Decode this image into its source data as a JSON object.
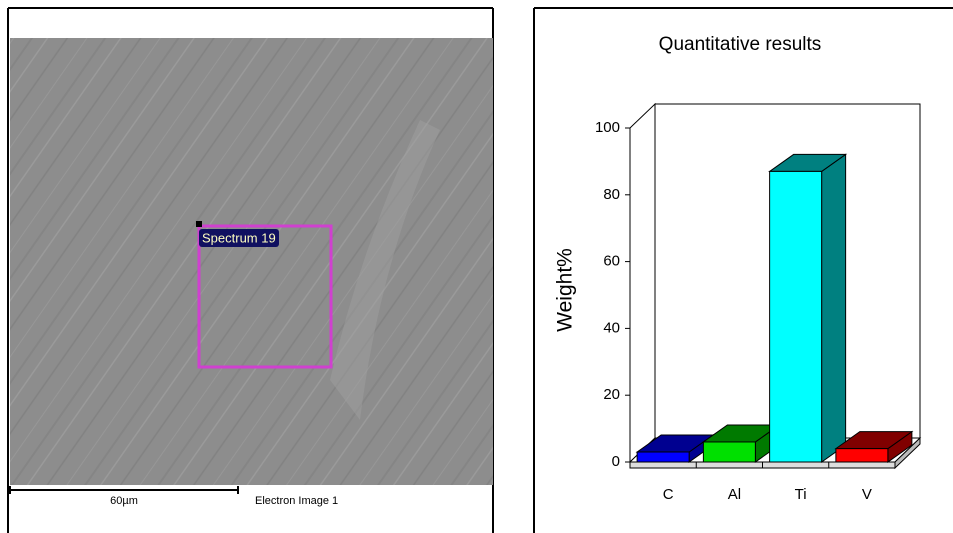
{
  "image": {
    "region_label": "Spectrum 19",
    "scale_bar": "60µm",
    "caption": "Electron Image 1"
  },
  "chart_data": {
    "type": "bar3d",
    "title": "Quantitative results",
    "y_label": "Weight%",
    "categories": [
      "C",
      "Al",
      "Ti",
      "V"
    ],
    "series": [
      {
        "name": "Weight%",
        "values": [
          3,
          6,
          87,
          4
        ]
      }
    ],
    "colors": [
      "#0000ff",
      "#00e000",
      "#00ffff",
      "#ff0000"
    ],
    "dark_colors": [
      "#000090",
      "#007a00",
      "#008080",
      "#800000"
    ],
    "ylim": [
      0,
      100
    ],
    "yticks": [
      0,
      20,
      40,
      60,
      80,
      100
    ]
  }
}
